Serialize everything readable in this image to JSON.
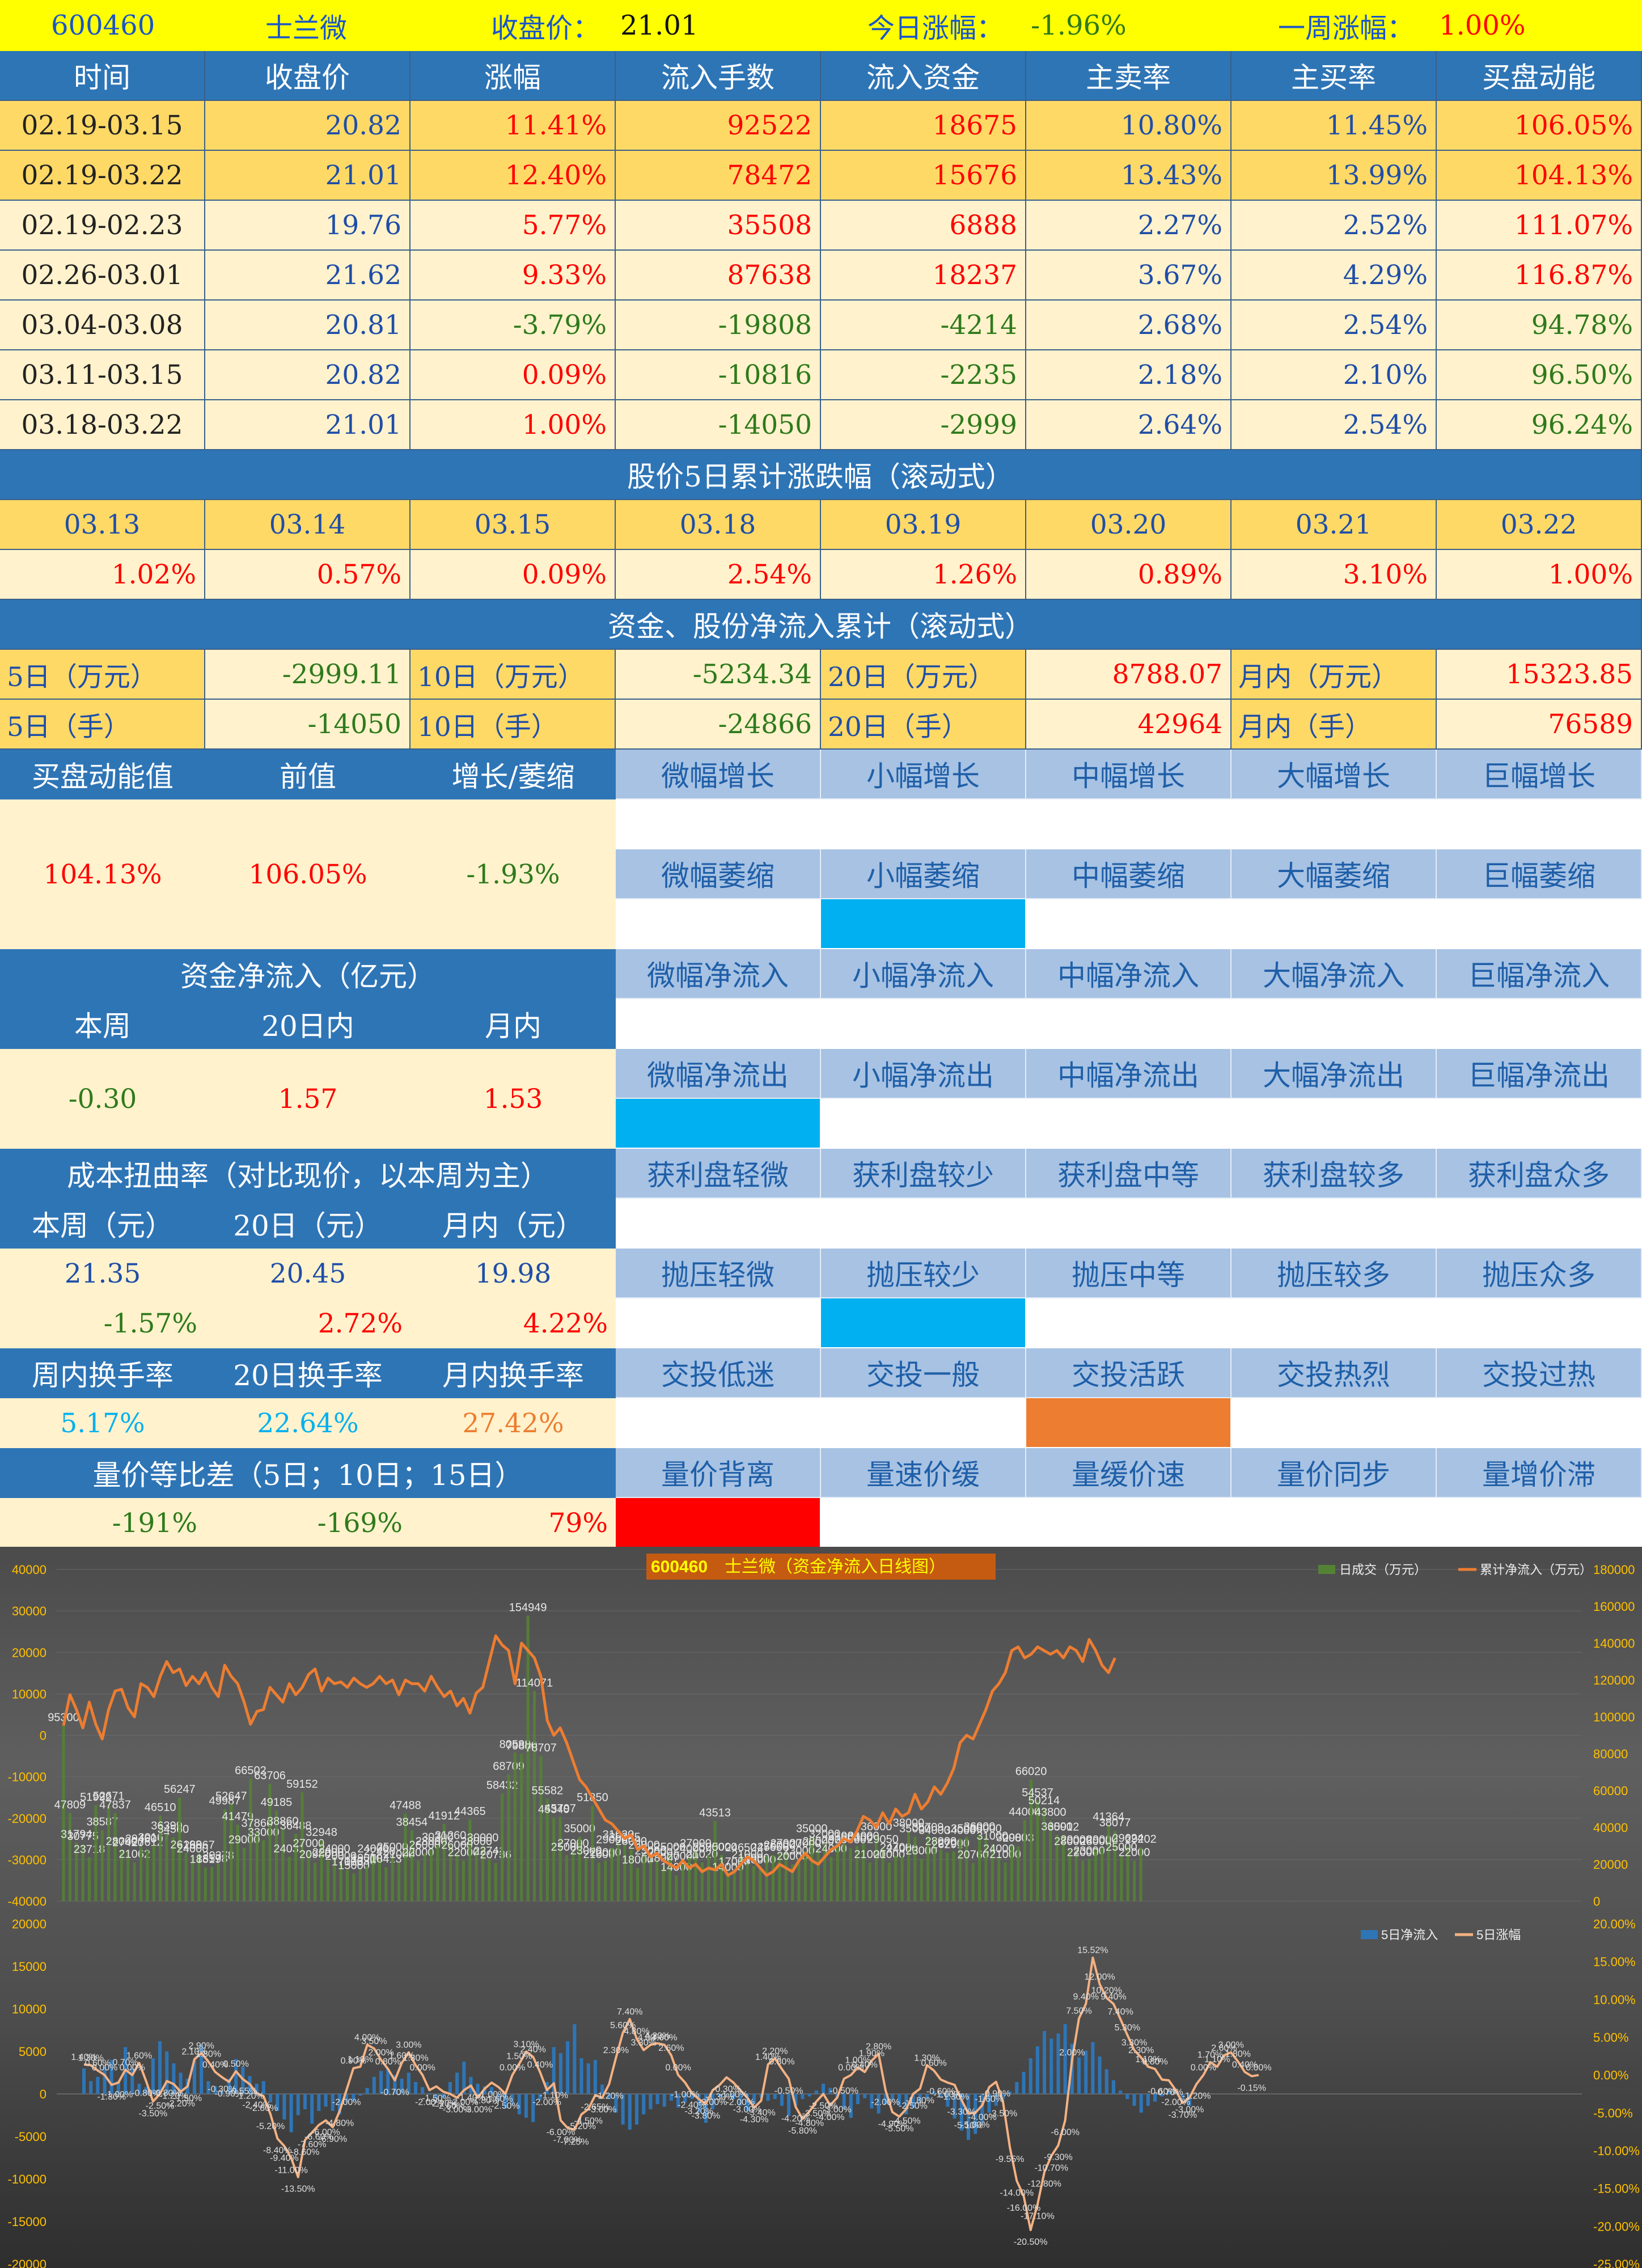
{
  "header": {
    "code": "600460",
    "name": "士兰微",
    "close_label": "收盘价：",
    "close": "21.01",
    "today_label": "今日涨幅：",
    "today": "-1.96%",
    "week_label": "一周涨幅：",
    "week": "1.00%"
  },
  "table1": {
    "columns": [
      "时间",
      "收盘价",
      "涨幅",
      "流入手数",
      "流入资金",
      "主卖率",
      "主买率",
      "买盘动能"
    ],
    "rows": [
      [
        "02.19-03.15",
        "20.82",
        "11.41%",
        "92522",
        "18675",
        "10.80%",
        "11.45%",
        "106.05%"
      ],
      [
        "02.19-03.22",
        "21.01",
        "12.40%",
        "78472",
        "15676",
        "13.43%",
        "13.99%",
        "104.13%"
      ],
      [
        "02.19-02.23",
        "19.76",
        "5.77%",
        "35508",
        "6888",
        "2.27%",
        "2.52%",
        "111.07%"
      ],
      [
        "02.26-03.01",
        "21.62",
        "9.33%",
        "87638",
        "18237",
        "3.67%",
        "4.29%",
        "116.87%"
      ],
      [
        "03.04-03.08",
        "20.81",
        "-3.79%",
        "-19808",
        "-4214",
        "2.68%",
        "2.54%",
        "94.78%"
      ],
      [
        "03.11-03.15",
        "20.82",
        "0.09%",
        "-10816",
        "-2235",
        "2.18%",
        "2.10%",
        "96.50%"
      ],
      [
        "03.18-03.22",
        "21.01",
        "1.00%",
        "-14050",
        "-2999",
        "2.64%",
        "2.54%",
        "96.24%"
      ]
    ]
  },
  "rolling5": {
    "title": "股价5日累计涨跌幅（滚动式）",
    "dates": [
      "03.13",
      "03.14",
      "03.15",
      "03.18",
      "03.19",
      "03.20",
      "03.21",
      "03.22"
    ],
    "values": [
      "1.02%",
      "0.57%",
      "0.09%",
      "2.54%",
      "1.26%",
      "0.89%",
      "3.10%",
      "1.00%"
    ]
  },
  "netflow": {
    "title": "资金、股份净流入累计（滚动式）",
    "row1": [
      [
        "5日（万元）",
        "-2999.11"
      ],
      [
        "10日（万元）",
        "-5234.34"
      ],
      [
        "20日（万元）",
        "8788.07"
      ],
      [
        "月内（万元）",
        "15323.85"
      ]
    ],
    "row2": [
      [
        "5日（手）",
        "-14050"
      ],
      [
        "10日（手）",
        "-24866"
      ],
      [
        "20日（手）",
        "42964"
      ],
      [
        "月内（手）",
        "76589"
      ]
    ]
  },
  "momentum": {
    "headers": [
      "买盘动能值",
      "前值",
      "增长/萎缩"
    ],
    "values": [
      "104.13%",
      "106.05%",
      "-1.93%"
    ]
  },
  "capital": {
    "title": "资金净流入（亿元）",
    "headers": [
      "本周",
      "20日内",
      "月内"
    ],
    "values": [
      "-0.30",
      "1.57",
      "1.53"
    ]
  },
  "cost": {
    "title": "成本扭曲率（对比现价，以本周为主）",
    "headers": [
      "本周（元）",
      "20日（元）",
      "月内（元）"
    ],
    "values": [
      "21.35",
      "20.45",
      "19.98"
    ],
    "pcts": [
      "-1.57%",
      "2.72%",
      "4.22%"
    ]
  },
  "turnover": {
    "headers": [
      "周内换手率",
      "20日换手率",
      "月内换手率"
    ],
    "values": [
      "5.17%",
      "22.64%",
      "27.42%"
    ]
  },
  "vpdiff": {
    "title": "量价等比差（5日；10日；15日）",
    "values": [
      "-191%",
      "-169%",
      "79%"
    ]
  },
  "indicators": [
    {
      "labels": [
        "微幅增长",
        "小幅增长",
        "中幅增长",
        "大幅增长",
        "巨幅增长"
      ],
      "active": -1,
      "color": ""
    },
    {
      "labels": [
        "微幅萎缩",
        "小幅萎缩",
        "中幅萎缩",
        "大幅萎缩",
        "巨幅萎缩"
      ],
      "active": 1,
      "color": "#00b0f0"
    },
    {
      "labels": [
        "微幅净流入",
        "小幅净流入",
        "中幅净流入",
        "大幅净流入",
        "巨幅净流入"
      ],
      "active": -1,
      "color": ""
    },
    {
      "labels": [
        "微幅净流出",
        "小幅净流出",
        "中幅净流出",
        "大幅净流出",
        "巨幅净流出"
      ],
      "active": 0,
      "color": "#00b0f0"
    },
    {
      "labels": [
        "获利盘轻微",
        "获利盘较少",
        "获利盘中等",
        "获利盘较多",
        "获利盘众多"
      ],
      "active": -1,
      "color": ""
    },
    {
      "labels": [
        "抛压轻微",
        "抛压较少",
        "抛压中等",
        "抛压较多",
        "抛压众多"
      ],
      "active": 1,
      "color": "#00b0f0"
    },
    {
      "labels": [
        "交投低迷",
        "交投一般",
        "交投活跃",
        "交投热烈",
        "交投过热"
      ],
      "active": 2,
      "color": "#ed7d31"
    },
    {
      "labels": [
        "量价背离",
        "量速价缓",
        "量缓价速",
        "量价同步",
        "量增价滞"
      ],
      "active": 0,
      "color": "#ff0000"
    }
  ],
  "colors": {
    "header_blue": "#2e75b6",
    "light_blue": "#a7c2e3",
    "gold": "#ffd966",
    "cream": "#fff2cc",
    "up_red": "#ff0000",
    "down_green": "#2e7a1c",
    "banner": "#ffff00"
  },
  "chart_data": [
    {
      "type": "bar",
      "title_code": "600460",
      "title": "士兰微（资金净流入日线图）",
      "series": [
        {
          "name": "日成交（万元）",
          "axis": "right",
          "values": [
            95300,
            47809,
            31794,
            30775,
            23718,
            51992,
            38587,
            52671,
            47837,
            28000,
            27420,
            21062,
            29460,
            27612,
            30167,
            46510,
            36399,
            34560,
            56247,
            26198,
            24000,
            26067,
            18319,
            18578,
            20378,
            49987,
            52647,
            41479,
            29000,
            66502,
            37866,
            33000,
            63706,
            49185,
            38860,
            24031,
            36488,
            59152,
            27000,
            20980,
            32948,
            22000,
            24000,
            20000,
            17000,
            15000,
            17336,
            19000,
            24000,
            22420,
            18413,
            25000,
            21000,
            47488,
            38454,
            22000,
            26000,
            28000,
            30300,
            41912,
            31260,
            26000,
            22000,
            44365,
            28000,
            30000,
            22741,
            20736,
            58432,
            68709,
            80588,
            79880,
            154949,
            114071,
            78707,
            55582,
            45340,
            45797,
            25000,
            27000,
            35000,
            23000,
            51850,
            21000,
            22000,
            29000,
            31620,
            30245,
            28000,
            18000,
            26000,
            23000,
            22000,
            18907,
            25000,
            14000,
            20000,
            24000,
            27000,
            21020,
            25000,
            43513,
            25000,
            14000,
            17000,
            24650,
            21000,
            19000,
            18000,
            24765,
            25000,
            26000,
            27000,
            20000,
            23000,
            27000,
            35000,
            28000,
            32000,
            24000,
            29000,
            31000,
            29000,
            30000,
            31000,
            21000,
            36000,
            29050,
            21000,
            24700,
            24000,
            38000,
            35000,
            23000,
            35709,
            34000,
            28000,
            26291,
            27000,
            34000,
            35000,
            20760,
            36000,
            35000,
            31000,
            24000,
            21000,
            30000,
            29803,
            44000,
            66020,
            54537,
            50214,
            43800,
            36000,
            35912,
            28000,
            29000,
            22000,
            23000,
            28000,
            29000,
            41364,
            38077,
            25000,
            29624,
            22000,
            29202
          ]
        },
        {
          "name": "累计净流入（万元）",
          "axis": "right",
          "values": [
            95300,
            112000,
            104000,
            94000,
            108000,
            96000,
            88000,
            104000,
            114000,
            115000,
            105000,
            100000,
            118000,
            116000,
            111000,
            122000,
            130000,
            124000,
            126000,
            117000,
            122000,
            118000,
            124000,
            116000,
            111000,
            128000,
            122000,
            118000,
            108000,
            96000,
            103000,
            104000,
            116000,
            112000,
            108000,
            118000,
            112000,
            116000,
            123000,
            126000,
            114000,
            121000,
            118000,
            119000,
            116000,
            121000,
            118000,
            116000,
            118000,
            122000,
            118000,
            120000,
            112000,
            120000,
            118000,
            118000,
            114000,
            122000,
            116000,
            111000,
            114000,
            106000,
            110000,
            102000,
            113000,
            116000,
            130000,
            144000,
            139000,
            136000,
            118000,
            140000,
            136000,
            132000,
            122000,
            98000,
            90000,
            94000,
            86000,
            76000,
            66000,
            62000,
            56000,
            50000,
            44000,
            42000,
            38000,
            34000,
            36000,
            28000,
            30000,
            24000,
            26000,
            22000,
            20000,
            18000,
            22000,
            18000,
            20000,
            16000,
            18000,
            17000,
            20000,
            14000,
            16000,
            20000,
            24000,
            22000,
            18000,
            14000,
            16000,
            20000,
            18000,
            16000,
            22000,
            26000,
            22000,
            20000,
            24000,
            28000,
            30000,
            34000,
            32000,
            38000,
            46000,
            44000,
            40000,
            48000,
            42000,
            50000,
            46000,
            48000,
            58000,
            50000,
            54000,
            62000,
            58000,
            64000,
            72000,
            86000,
            90000,
            88000,
            96000,
            104000,
            114000,
            118000,
            124000,
            136000,
            138000,
            132000,
            134000,
            138000,
            136000,
            134000,
            136000,
            132000,
            138000,
            136000,
            130000,
            142000,
            136000,
            128000,
            124000,
            132000
          ]
        }
      ]
    },
    {
      "type": "bar",
      "series": [
        {
          "name": "5日净流入",
          "axis": "left",
          "values": [
            3000,
            1500,
            2000,
            3200,
            4000,
            1500,
            5500,
            3000,
            1200,
            800,
            4200,
            6200,
            5000,
            3600,
            2500,
            1800,
            4000,
            5800,
            1500,
            900,
            300,
            1800,
            4100,
            3200,
            2100,
            1200,
            1500,
            -1000,
            -2000,
            -3000,
            -4500,
            -2500,
            -1800,
            -3500,
            -2000,
            -1500,
            -2000,
            -2400,
            -1000,
            -800,
            -200,
            700,
            2000,
            2700,
            3000,
            2200,
            1800,
            2500,
            1400,
            800,
            100,
            -600,
            -400,
            1400,
            2500,
            3800,
            2000,
            1200,
            900,
            800,
            -800,
            -1700,
            -1300,
            -2400,
            -2800,
            -3300,
            -700,
            1400,
            5500,
            4800,
            6200,
            8200,
            4200,
            3600,
            4000,
            1100,
            -600,
            -2200,
            -3600,
            -4200,
            -3600,
            -2400,
            -1800,
            -1200,
            -1500,
            -800,
            -1600,
            -1000,
            -600,
            -2200,
            -3400,
            -1800,
            -400,
            -200,
            -600,
            -1400,
            -2000,
            -1200,
            -400,
            -800,
            -600,
            -1400,
            -2600,
            -1400,
            -600,
            -300,
            400,
            1200,
            700,
            -400,
            -1800,
            -2800,
            -1200,
            -500,
            -1700,
            -2300,
            -1200,
            -800,
            -1400,
            -2400,
            -1600,
            -1000,
            -600,
            300,
            -400,
            -1500,
            -2900,
            -4300,
            -5400,
            -4700,
            -3500,
            -2200,
            -1400,
            -600,
            300,
            1400,
            2600,
            4200,
            5600,
            7400,
            6500,
            7100,
            8200,
            5900,
            4300,
            5100,
            6100,
            4400,
            2900,
            1600,
            400,
            -600,
            -1400,
            -2200,
            -1400,
            -900,
            -300,
            400,
            200,
            -600,
            -1400
          ]
        },
        {
          "name": "5日涨幅",
          "axis": "right",
          "values": [
            0.014,
            0.013,
            0.006,
            0.0,
            -0.013,
            -0.01,
            0.007,
            0.0,
            0.016,
            -0.008,
            -0.035,
            -0.025,
            -0.008,
            -0.012,
            -0.022,
            -0.015,
            0.021,
            0.029,
            0.018,
            0.004,
            -0.003,
            -0.009,
            0.005,
            -0.0055,
            -0.012,
            -0.024,
            -0.028,
            -0.052,
            -0.084,
            -0.094,
            -0.11,
            -0.135,
            -0.086,
            -0.076,
            -0.066,
            -0.06,
            -0.069,
            -0.048,
            -0.02,
            0.009,
            0.011,
            0.04,
            0.035,
            0.02,
            0.008,
            -0.007,
            0.016,
            0.03,
            0.013,
            0.0,
            -0.02,
            -0.015,
            -0.022,
            -0.025,
            -0.03,
            -0.02,
            -0.014,
            -0.03,
            -0.018,
            -0.01,
            -0.016,
            -0.025,
            0.0,
            0.015,
            0.031,
            0.024,
            0.004,
            -0.02,
            -0.011,
            -0.06,
            -0.07,
            -0.0725,
            -0.052,
            -0.045,
            -0.0265,
            -0.03,
            -0.012,
            0.023,
            0.056,
            0.074,
            0.048,
            0.033,
            0.04,
            0.042,
            0.04,
            0.026,
            0.0,
            -0.01,
            -0.024,
            -0.032,
            -0.038,
            -0.02,
            -0.013,
            -0.003,
            -0.01,
            -0.02,
            -0.03,
            -0.043,
            -0.034,
            0.014,
            0.022,
            0.008,
            -0.005,
            -0.042,
            -0.058,
            -0.048,
            -0.035,
            -0.025,
            -0.04,
            -0.03,
            -0.005,
            0.0,
            0.01,
            0.004,
            0.019,
            0.028,
            -0.02,
            -0.049,
            -0.055,
            -0.045,
            -0.025,
            -0.018,
            0.013,
            0.006,
            -0.006,
            -0.01,
            -0.013,
            -0.033,
            -0.051,
            -0.05,
            -0.04,
            -0.016,
            -0.009,
            -0.035,
            -0.0955,
            -0.14,
            -0.16,
            -0.205,
            -0.171,
            -0.128,
            -0.107,
            -0.093,
            -0.06,
            0.02,
            0.075,
            0.094,
            0.1552,
            0.12,
            0.102,
            0.094,
            0.074,
            0.053,
            0.033,
            0.023,
            0.011,
            0.008,
            -0.006,
            -0.007,
            -0.02,
            -0.037,
            -0.03,
            -0.012,
            0.0,
            0.017,
            0.011,
            0.026,
            0.03,
            0.018,
            0.004,
            -0.0015,
            0.0
          ]
        }
      ]
    }
  ]
}
